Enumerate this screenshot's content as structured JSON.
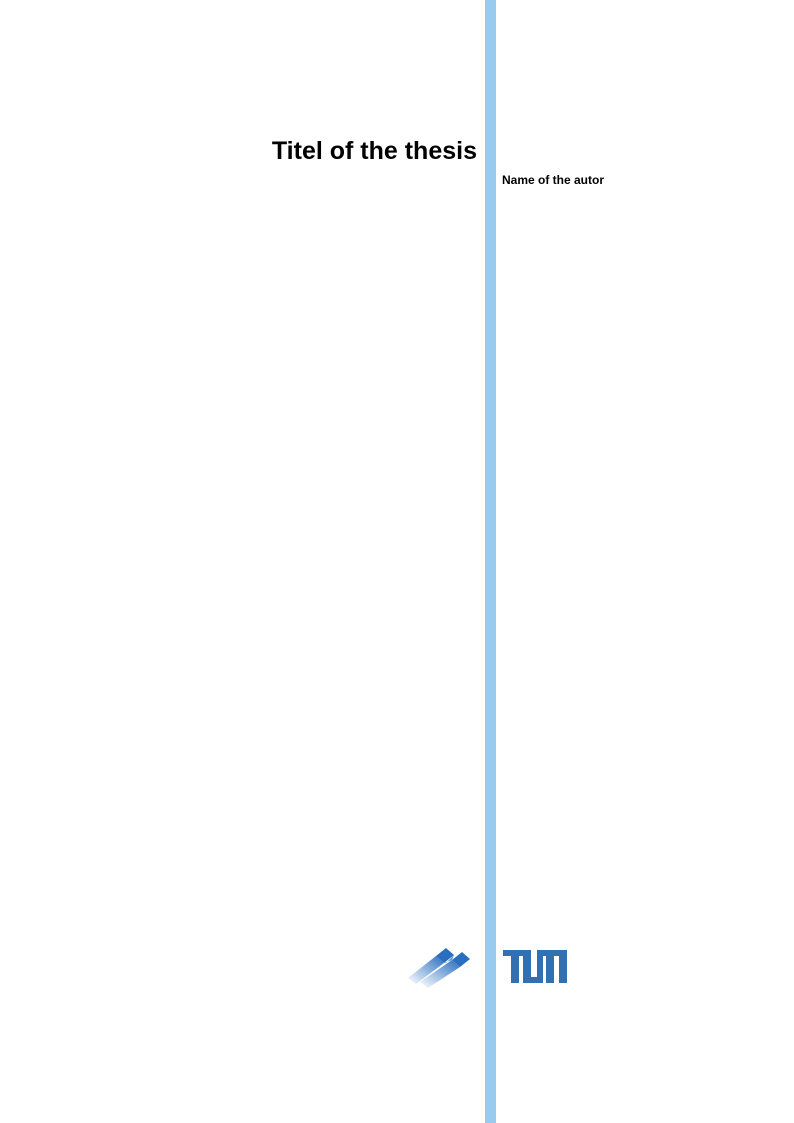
{
  "document": {
    "title": "Titel of the thesis",
    "author": "Name of the autor"
  },
  "colors": {
    "side_bar": "#98cbef",
    "tum_blue": "#3070b3"
  },
  "logos": [
    "faculty-logo",
    "tum-logo"
  ]
}
